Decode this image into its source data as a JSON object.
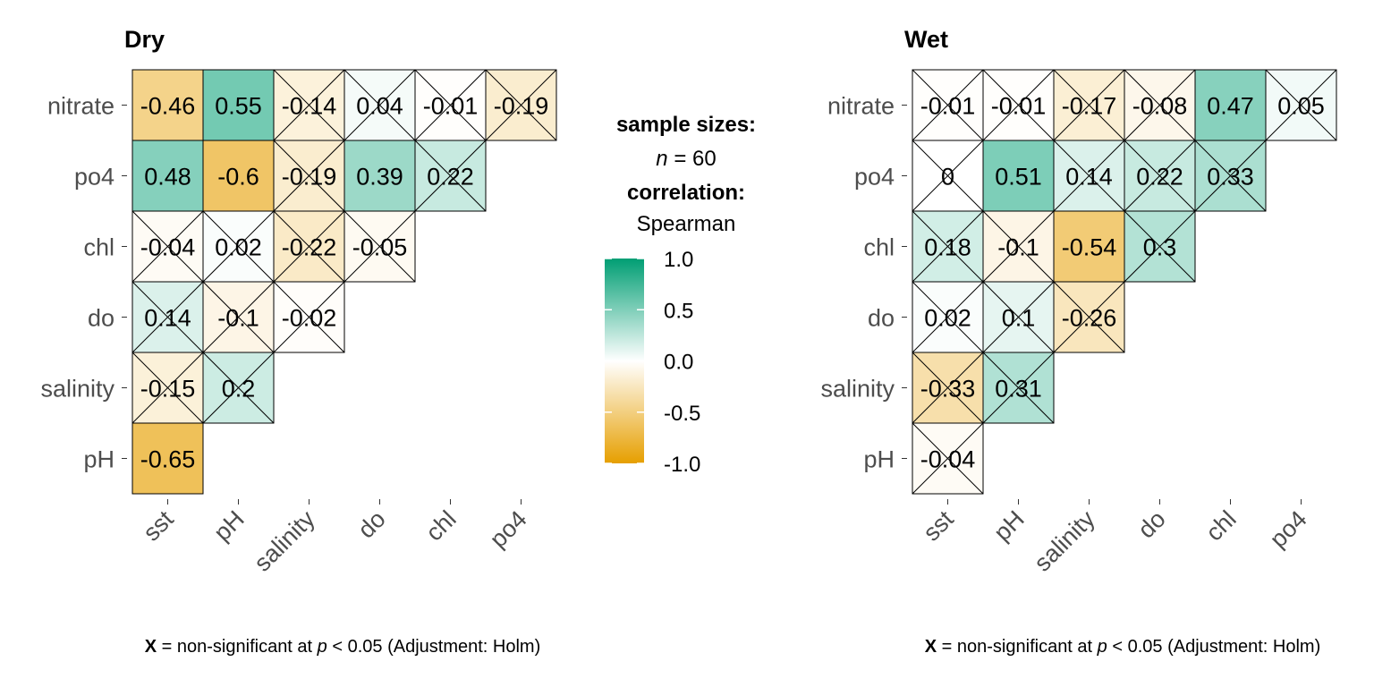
{
  "chart_data": [
    {
      "type": "heatmap",
      "title": "Dry",
      "rows": [
        "nitrate",
        "po4",
        "chl",
        "do",
        "salinity",
        "pH"
      ],
      "cols": [
        "sst",
        "pH",
        "salinity",
        "do",
        "chl",
        "po4"
      ],
      "values": [
        [
          -0.46,
          0.55,
          -0.14,
          0.04,
          -0.01,
          -0.19
        ],
        [
          0.48,
          -0.6,
          -0.19,
          0.39,
          0.22
        ],
        [
          -0.04,
          0.02,
          -0.22,
          -0.05
        ],
        [
          0.14,
          -0.1,
          -0.02
        ],
        [
          -0.15,
          0.2
        ],
        [
          -0.65
        ]
      ],
      "labels": [
        [
          "-0.46",
          "0.55",
          "-0.14",
          "0.04",
          "-0.01",
          "-0.19"
        ],
        [
          "0.48",
          "-0.6",
          "-0.19",
          "0.39",
          "0.22"
        ],
        [
          "-0.04",
          "0.02",
          "-0.22",
          "-0.05"
        ],
        [
          "0.14",
          "-0.1",
          "-0.02"
        ],
        [
          "-0.15",
          "0.2"
        ],
        [
          "-0.65"
        ]
      ],
      "nonsignificant": [
        [
          false,
          false,
          true,
          true,
          true,
          true
        ],
        [
          false,
          false,
          true,
          false,
          true
        ],
        [
          true,
          true,
          true,
          true
        ],
        [
          true,
          true,
          true
        ],
        [
          true,
          true
        ],
        [
          false
        ]
      ],
      "caption": {
        "x_mark": "X",
        "text_a": " = non-significant at ",
        "p": "p",
        "text_b": " < 0.05 (Adjustment: Holm)"
      }
    },
    {
      "type": "heatmap",
      "title": "Wet",
      "rows": [
        "nitrate",
        "po4",
        "chl",
        "do",
        "salinity",
        "pH"
      ],
      "cols": [
        "sst",
        "pH",
        "salinity",
        "do",
        "chl",
        "po4"
      ],
      "values": [
        [
          -0.01,
          -0.01,
          -0.17,
          -0.08,
          0.47,
          0.05
        ],
        [
          0,
          0.51,
          0.14,
          0.22,
          0.33
        ],
        [
          0.18,
          -0.1,
          -0.54,
          0.3
        ],
        [
          0.02,
          0.1,
          -0.26
        ],
        [
          -0.33,
          0.31
        ],
        [
          -0.04
        ]
      ],
      "labels": [
        [
          "-0.01",
          "-0.01",
          "-0.17",
          "-0.08",
          "0.47",
          "0.05"
        ],
        [
          "0",
          "0.51",
          "0.14",
          "0.22",
          "0.33"
        ],
        [
          "0.18",
          "-0.1",
          "-0.54",
          "0.3"
        ],
        [
          "0.02",
          "0.1",
          "-0.26"
        ],
        [
          "-0.33",
          "0.31"
        ],
        [
          "-0.04"
        ]
      ],
      "nonsignificant": [
        [
          true,
          true,
          true,
          true,
          false,
          true
        ],
        [
          true,
          false,
          true,
          true,
          true
        ],
        [
          true,
          true,
          false,
          true
        ],
        [
          true,
          true,
          true
        ],
        [
          true,
          true
        ],
        [
          true
        ]
      ],
      "caption": {
        "x_mark": "X",
        "text_a": " = non-significant at ",
        "p": "p",
        "text_b": " < 0.05 (Adjustment: Holm)"
      }
    }
  ],
  "legend": {
    "sample_sizes_label": "sample sizes:",
    "n_symbol": "n",
    "n_text": " = 60",
    "correlation_label": "correlation:",
    "method": "Spearman",
    "scale_ticks": [
      "1.0",
      "0.5",
      "0.0",
      "-0.5",
      "-1.0"
    ],
    "scale_values": [
      1.0,
      0.5,
      0.0,
      -0.5,
      -1.0
    ],
    "colors": {
      "low": "#E69F00",
      "mid": "#FFFFFF",
      "high": "#009E73"
    }
  }
}
